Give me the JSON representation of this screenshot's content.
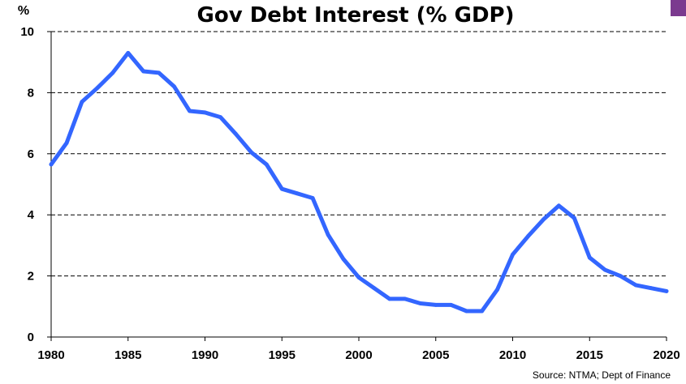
{
  "chart_data": {
    "type": "line",
    "title": "Gov Debt Interest (% GDP)",
    "ylabel": "%",
    "xlabel": "",
    "source": "Source: NTMA; Dept of Finance",
    "xlim": [
      1980,
      2020
    ],
    "ylim": [
      0,
      10
    ],
    "xticks": [
      "1980",
      "1985",
      "1990",
      "1995",
      "2000",
      "2005",
      "2010",
      "2015",
      "2020"
    ],
    "yticks": [
      "0",
      "2",
      "4",
      "6",
      "8",
      "10"
    ],
    "grid": true,
    "line_color": "#3366ff",
    "corner_badge_color": "#7b3a8f",
    "series": [
      {
        "x": [
          1980,
          1981,
          1982,
          1983,
          1984,
          1985,
          1986,
          1987,
          1988,
          1989,
          1990,
          1991,
          1992,
          1993,
          1994,
          1995,
          1996,
          1997,
          1998,
          1999,
          2000,
          2001,
          2002,
          2003,
          2004,
          2005,
          2006,
          2007,
          2008,
          2009,
          2010,
          2011,
          2012,
          2013,
          2014,
          2015,
          2016,
          2017,
          2018,
          2019,
          2020
        ],
        "values": [
          5.65,
          6.35,
          7.7,
          8.15,
          8.65,
          9.3,
          8.7,
          8.65,
          8.2,
          7.4,
          7.35,
          7.2,
          6.65,
          6.05,
          5.65,
          4.85,
          4.7,
          4.55,
          3.35,
          2.55,
          1.95,
          1.6,
          1.25,
          1.25,
          1.1,
          1.05,
          1.05,
          0.85,
          0.85,
          1.55,
          2.7,
          3.3,
          3.85,
          4.3,
          3.9,
          2.6,
          2.2,
          2.0,
          1.7,
          1.6,
          1.5
        ]
      }
    ]
  }
}
